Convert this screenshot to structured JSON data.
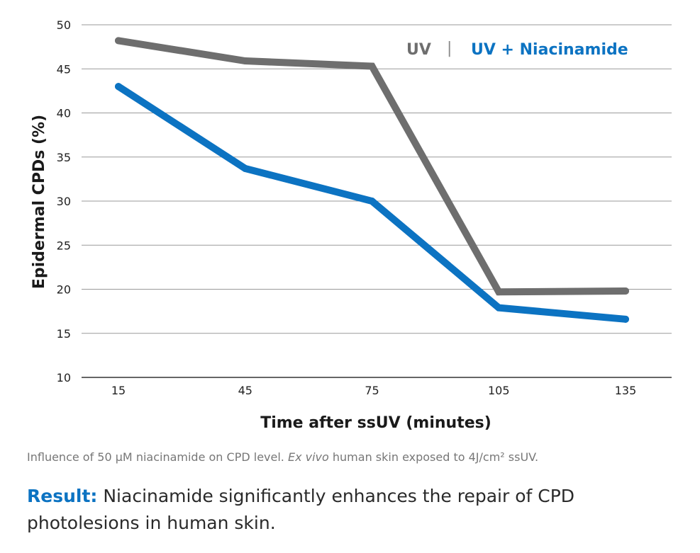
{
  "chart_data": {
    "type": "line",
    "title": "",
    "xlabel": "Time after ssUV (minutes)",
    "ylabel": "Epidermal CPDs (%)",
    "x": [
      15,
      45,
      75,
      105,
      135
    ],
    "ylim": [
      10,
      50
    ],
    "yticks": [
      10,
      15,
      20,
      25,
      30,
      35,
      40,
      45,
      50
    ],
    "grid": "horizontal",
    "legend_placement": "top-right",
    "legend_separator": "|",
    "series": [
      {
        "name": "UV",
        "color": "#6e6e6e",
        "values": [
          48.2,
          45.9,
          45.3,
          19.7,
          19.8
        ]
      },
      {
        "name": "UV + Niacinamide",
        "color": "#0c73c2",
        "values": [
          43.0,
          33.7,
          30.0,
          17.9,
          16.6
        ]
      }
    ]
  },
  "caption": {
    "part1": "Influence of 50 µM niacinamide on CPD level. ",
    "italic": "Ex vivo",
    "part2": " human skin exposed to 4J/cm² ssUV."
  },
  "result": {
    "label": "Result:",
    "text": " Niacinamide significantly enhances the repair of CPD photolesions in human skin."
  }
}
